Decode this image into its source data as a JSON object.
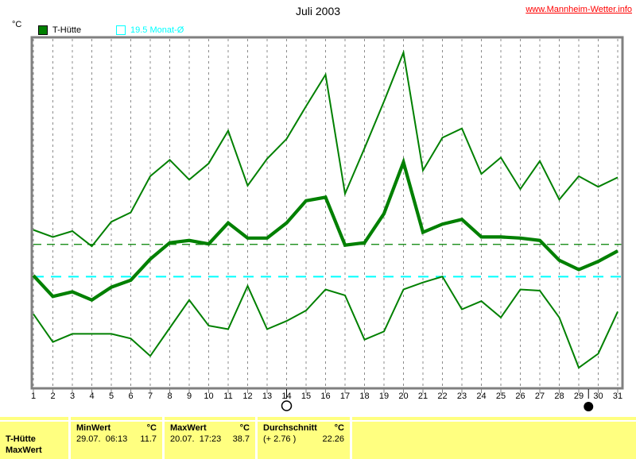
{
  "header": {
    "title": "Juli 2003",
    "website": "www.Mannheim-Wetter.info",
    "website_color": "#ff0000"
  },
  "unit_label": "°C",
  "legend": [
    {
      "label": "T-Hütte",
      "color": "#008000",
      "swatch": "filled"
    },
    {
      "label": "19.5 Monat-Ø",
      "color": "#00ffff",
      "swatch": "outline"
    }
  ],
  "chart_data": {
    "type": "line",
    "title": "Juli 2003",
    "xlabel": "",
    "ylabel": "°C",
    "ylim": [
      10,
      40
    ],
    "y_tick_step": 2,
    "x": [
      1,
      2,
      3,
      4,
      5,
      6,
      7,
      8,
      9,
      10,
      11,
      12,
      13,
      14,
      15,
      16,
      17,
      18,
      19,
      20,
      21,
      22,
      23,
      24,
      25,
      26,
      27,
      28,
      29,
      30,
      31
    ],
    "series": [
      {
        "name": "max",
        "color": "#008000",
        "width": "thin",
        "values": [
          23.5,
          22.9,
          23.4,
          22.1,
          24.2,
          25.0,
          28.1,
          29.5,
          27.8,
          29.2,
          32.0,
          27.3,
          29.6,
          31.3,
          34.1,
          36.8,
          26.6,
          30.5,
          34.5,
          38.7,
          28.6,
          31.4,
          32.2,
          28.3,
          29.7,
          27.0,
          29.4,
          26.1,
          28.1,
          27.2,
          28.0
        ]
      },
      {
        "name": "mean",
        "color": "#008000",
        "width": "thick",
        "values": [
          19.6,
          17.8,
          18.2,
          17.5,
          18.6,
          19.2,
          21.0,
          22.4,
          22.6,
          22.3,
          24.1,
          22.8,
          22.8,
          24.1,
          26.0,
          26.3,
          22.2,
          22.4,
          24.9,
          29.3,
          23.3,
          24.0,
          24.4,
          22.9,
          22.9,
          22.8,
          22.6,
          20.9,
          20.1,
          20.8,
          21.7
        ]
      },
      {
        "name": "min",
        "color": "#008000",
        "width": "thin",
        "values": [
          16.3,
          13.9,
          14.6,
          14.6,
          14.6,
          14.2,
          12.7,
          15.1,
          17.5,
          15.3,
          15.0,
          18.7,
          15.0,
          15.7,
          16.6,
          18.4,
          17.9,
          14.1,
          14.8,
          18.4,
          19.0,
          19.5,
          16.7,
          17.4,
          16.0,
          18.4,
          18.3,
          16.0,
          11.7,
          12.9,
          16.5
        ]
      }
    ],
    "reference_lines": [
      {
        "label": "19.5 Monat-Ø",
        "value": 19.5,
        "color": "#00ffff",
        "style": "long-dash"
      },
      {
        "label": "Durchschnitt 22.26",
        "value": 22.26,
        "color": "#008000",
        "style": "long-dash"
      }
    ],
    "markers": [
      {
        "type": "full-moon",
        "day": 14
      },
      {
        "type": "new-moon",
        "day": 29.5
      }
    ],
    "grid": true,
    "legend_position": "top-left"
  },
  "table": {
    "bg": "#ffff80",
    "row_label_1": "T-Hütte",
    "row_label_2": "MaxWert",
    "cols": [
      {
        "header": "MinWert",
        "unit": "°C",
        "date": "29.07.  06:13",
        "value": "11.7"
      },
      {
        "header": "MaxWert",
        "unit": "°C",
        "date": "20.07.  17:23",
        "value": "38.7"
      },
      {
        "header": "Durchschnitt",
        "unit": "°C",
        "date": "(+ 2.76 )",
        "value": "22.26"
      }
    ]
  }
}
